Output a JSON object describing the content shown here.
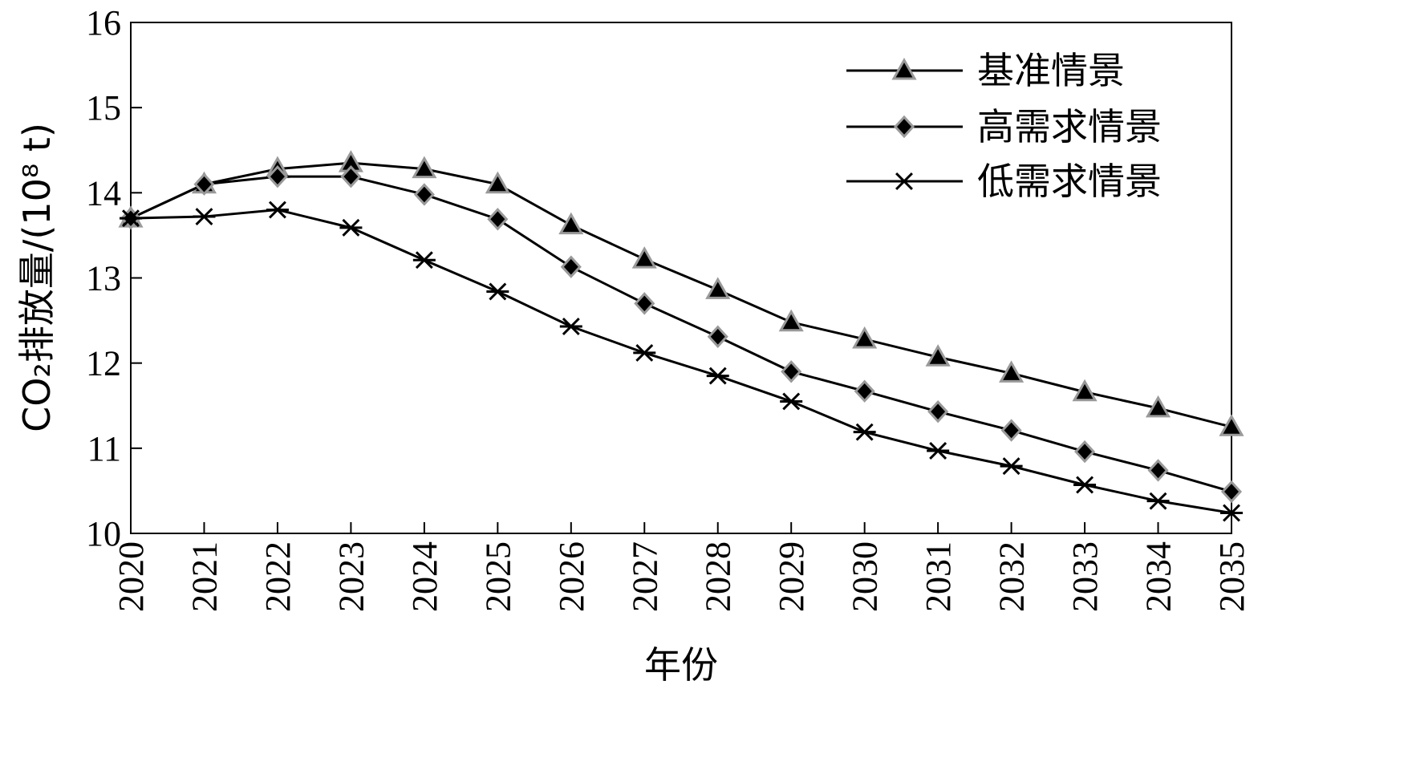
{
  "chart_data": {
    "type": "line",
    "x": [
      "2020",
      "2021",
      "2022",
      "2023",
      "2024",
      "2025",
      "2026",
      "2027",
      "2028",
      "2029",
      "2030",
      "2031",
      "2032",
      "2033",
      "2034",
      "2035"
    ],
    "xlabel": "年份",
    "ylabel": "CO₂排放量/(10⁸ t)",
    "ylim": [
      10,
      16
    ],
    "yticks": [
      "10",
      "11",
      "12",
      "13",
      "14",
      "15",
      "16"
    ],
    "grid": false,
    "legend_position": "top-right",
    "series": [
      {
        "name": "基准情景",
        "marker": "triangle",
        "values": [
          13.7,
          14.1,
          14.28,
          14.35,
          14.28,
          14.1,
          13.62,
          13.22,
          12.86,
          12.48,
          12.28,
          12.07,
          11.88,
          11.66,
          11.47,
          11.25
        ]
      },
      {
        "name": "高需求情景",
        "marker": "diamond",
        "values": [
          13.7,
          14.1,
          14.19,
          14.19,
          13.98,
          13.69,
          13.13,
          12.7,
          12.31,
          11.9,
          11.67,
          11.43,
          11.21,
          10.96,
          10.74,
          10.49
        ]
      },
      {
        "name": "低需求情景",
        "marker": "asterisk",
        "values": [
          13.7,
          13.72,
          13.8,
          13.59,
          13.21,
          12.84,
          12.43,
          12.12,
          11.85,
          11.55,
          11.19,
          10.97,
          10.79,
          10.57,
          10.38,
          10.24
        ]
      }
    ]
  }
}
